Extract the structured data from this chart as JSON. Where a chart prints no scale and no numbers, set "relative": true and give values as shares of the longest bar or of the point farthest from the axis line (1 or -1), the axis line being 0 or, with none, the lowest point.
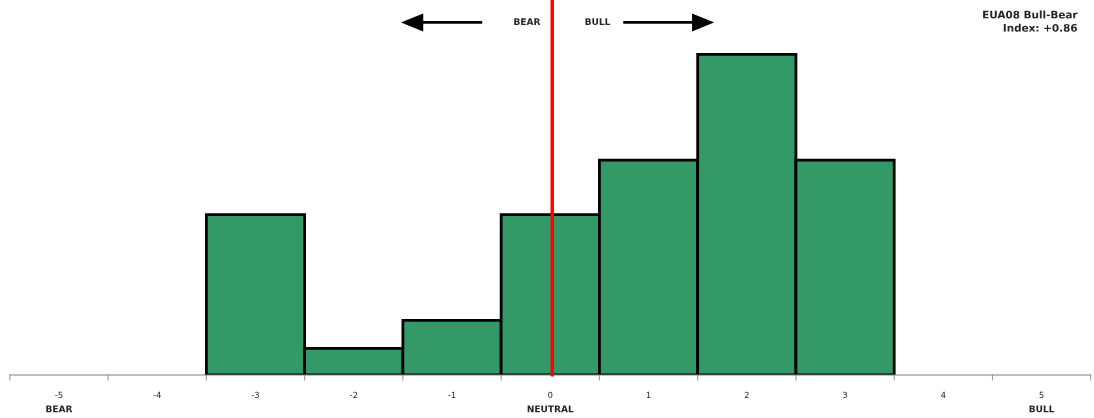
{
  "chart_data": {
    "type": "bar",
    "title": "EUA08 Bull-Bear\nIndex: +0.86",
    "categories": [
      "-5",
      "-4",
      "-3",
      "-2",
      "-1",
      "0",
      "1",
      "2",
      "3",
      "4",
      "5"
    ],
    "values": [
      0,
      0,
      0.5,
      0.083,
      0.17,
      0.5,
      0.67,
      1,
      0.67,
      0,
      0
    ],
    "color": "#339966",
    "relative": true,
    "ref_lines": [
      {
        "axis": "x",
        "value": "0",
        "color": "#ff0000"
      }
    ],
    "annotations": [
      "BEAR",
      "BULL",
      "BEAR",
      "NEUTRAL",
      "BULL"
    ]
  }
}
